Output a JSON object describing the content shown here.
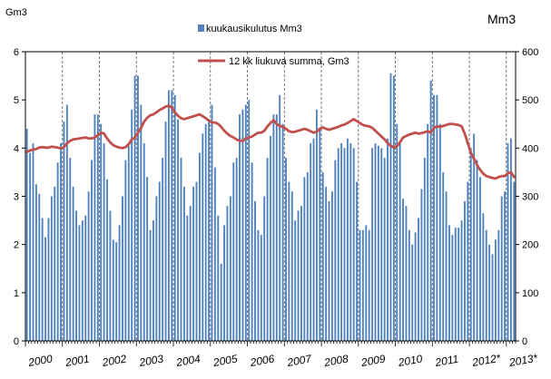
{
  "chart_data": {
    "type": "bar+line",
    "left_unit": "Gm3",
    "right_unit": "Mm3",
    "x_labels": [
      "2000",
      "2001",
      "2002",
      "2003",
      "2004",
      "2005",
      "2006",
      "2007",
      "2008",
      "2009",
      "2010",
      "2011",
      "2012*",
      "2013*"
    ],
    "y_left_ticks": [
      "0",
      "1",
      "2",
      "3",
      "4",
      "5",
      "6"
    ],
    "y_right_ticks": [
      "0",
      "100",
      "200",
      "300",
      "400",
      "500",
      "600"
    ],
    "ylim_left": [
      0,
      6
    ],
    "ylim_right": [
      0,
      600
    ],
    "series": [
      {
        "name": "kuukausikulutus Mm3",
        "kind": "bar",
        "axis": "right",
        "color": "#4f81bd",
        "values": [
          440,
          390,
          410,
          325,
          305,
          255,
          215,
          255,
          300,
          320,
          370,
          410,
          455,
          490,
          380,
          320,
          270,
          240,
          250,
          260,
          310,
          375,
          470,
          470,
          450,
          410,
          335,
          270,
          210,
          205,
          240,
          300,
          375,
          405,
          480,
          550,
          550,
          490,
          410,
          340,
          230,
          250,
          300,
          330,
          380,
          455,
          520,
          520,
          510,
          460,
          380,
          320,
          260,
          280,
          320,
          330,
          390,
          430,
          450,
          460,
          490,
          360,
          260,
          160,
          240,
          280,
          300,
          370,
          380,
          470,
          480,
          490,
          500,
          370,
          290,
          230,
          220,
          300,
          380,
          425,
          470,
          470,
          510,
          450,
          380,
          330,
          310,
          250,
          270,
          280,
          340,
          350,
          410,
          420,
          480,
          440,
          350,
          320,
          290,
          310,
          375,
          400,
          410,
          400,
          420,
          410,
          400,
          330,
          230,
          230,
          240,
          230,
          400,
          410,
          405,
          400,
          380,
          420,
          555,
          550,
          450,
          410,
          295,
          280,
          230,
          200,
          225,
          255,
          315,
          380,
          450,
          540,
          510,
          510,
          450,
          350,
          310,
          240,
          220,
          235,
          235,
          250,
          290,
          330,
          400,
          430,
          375,
          340,
          265,
          230,
          200,
          180,
          210,
          230,
          300,
          310,
          410,
          420,
          330
        ]
      },
      {
        "name": "12 kk liukuva summa,  Gm3",
        "kind": "line",
        "axis": "left",
        "color": "#c0504d",
        "values": [
          3.92,
          3.95,
          3.97,
          3.98,
          4.01,
          4.02,
          4.01,
          4.01,
          4.03,
          4.02,
          4.01,
          3.99,
          4.02,
          4.1,
          4.15,
          4.18,
          4.19,
          4.2,
          4.21,
          4.22,
          4.2,
          4.2,
          4.22,
          4.27,
          4.32,
          4.3,
          4.2,
          4.12,
          4.06,
          4.03,
          4.01,
          4.0,
          4.02,
          4.08,
          4.18,
          4.22,
          4.32,
          4.42,
          4.55,
          4.63,
          4.68,
          4.7,
          4.74,
          4.79,
          4.82,
          4.86,
          4.88,
          4.84,
          4.74,
          4.67,
          4.62,
          4.6,
          4.62,
          4.64,
          4.66,
          4.68,
          4.7,
          4.66,
          4.62,
          4.57,
          4.53,
          4.53,
          4.5,
          4.44,
          4.36,
          4.3,
          4.25,
          4.22,
          4.18,
          4.15,
          4.15,
          4.2,
          4.22,
          4.24,
          4.28,
          4.32,
          4.32,
          4.36,
          4.45,
          4.52,
          4.58,
          4.5,
          4.46,
          4.44,
          4.4,
          4.35,
          4.33,
          4.34,
          4.36,
          4.38,
          4.4,
          4.38,
          4.35,
          4.32,
          4.34,
          4.4,
          4.43,
          4.4,
          4.38,
          4.4,
          4.42,
          4.44,
          4.47,
          4.49,
          4.52,
          4.56,
          4.6,
          4.56,
          4.52,
          4.48,
          4.46,
          4.45,
          4.42,
          4.36,
          4.3,
          4.24,
          4.18,
          4.1,
          4.05,
          4.01,
          4.04,
          4.12,
          4.22,
          4.25,
          4.28,
          4.3,
          4.32,
          4.3,
          4.31,
          4.33,
          4.35,
          4.32,
          4.42,
          4.45,
          4.44,
          4.46,
          4.48,
          4.5,
          4.5,
          4.49,
          4.48,
          4.45,
          4.3,
          4.1,
          3.9,
          3.78,
          3.65,
          3.55,
          3.47,
          3.42,
          3.4,
          3.38,
          3.37,
          3.4,
          3.42,
          3.42,
          3.48,
          3.5,
          3.4
        ]
      }
    ],
    "grid": false,
    "legend_position": "top-center"
  }
}
